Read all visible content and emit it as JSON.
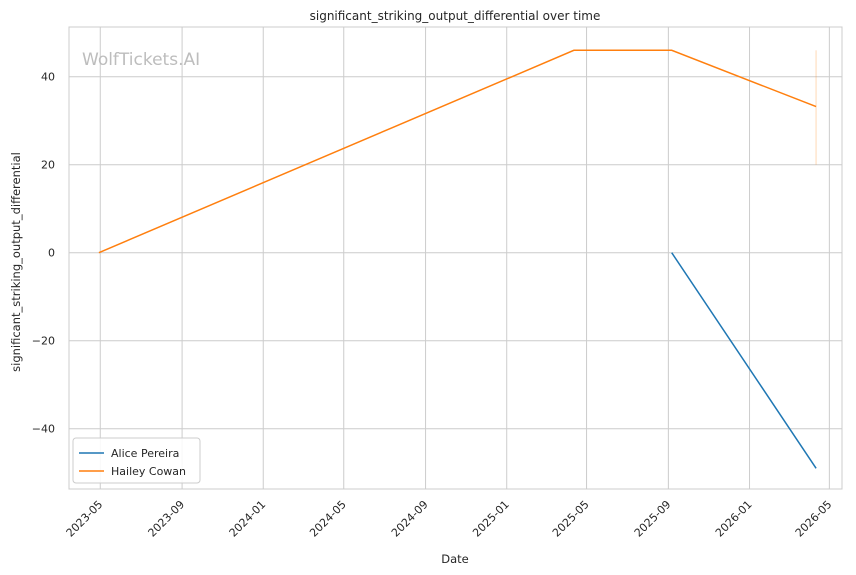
{
  "watermark": "WolfTickets.AI",
  "chart_data": {
    "type": "line",
    "title": "significant_striking_output_differential over time",
    "xlabel": "Date",
    "ylabel": "significant_striking_output_differential",
    "x_ticks": [
      "2023-05",
      "2023-09",
      "2024-01",
      "2024-05",
      "2024-09",
      "2025-01",
      "2025-05",
      "2025-09",
      "2026-01",
      "2026-05"
    ],
    "y_ticks": [
      -40,
      -20,
      0,
      20,
      40
    ],
    "xlim": [
      "2023-03-15",
      "2026-05-20"
    ],
    "ylim": [
      -53.7,
      51.3
    ],
    "grid": true,
    "legend_position": "lower-left",
    "series": [
      {
        "name": "Alice Pereira",
        "color": "#1f77b4",
        "points": [
          {
            "x": "2025-09-06",
            "y": 0
          },
          {
            "x": "2026-04-11",
            "y": -49
          }
        ]
      },
      {
        "name": "Hailey Cowan",
        "color": "#ff7f0e",
        "points": [
          {
            "x": "2023-04-29",
            "y": 0
          },
          {
            "x": "2025-04-12",
            "y": 46
          },
          {
            "x": "2025-09-06",
            "y": 46
          },
          {
            "x": "2026-04-11",
            "y": 33.2
          }
        ],
        "error_band": {
          "x": "2026-04-11",
          "low": 20,
          "high": 46
        }
      }
    ]
  }
}
